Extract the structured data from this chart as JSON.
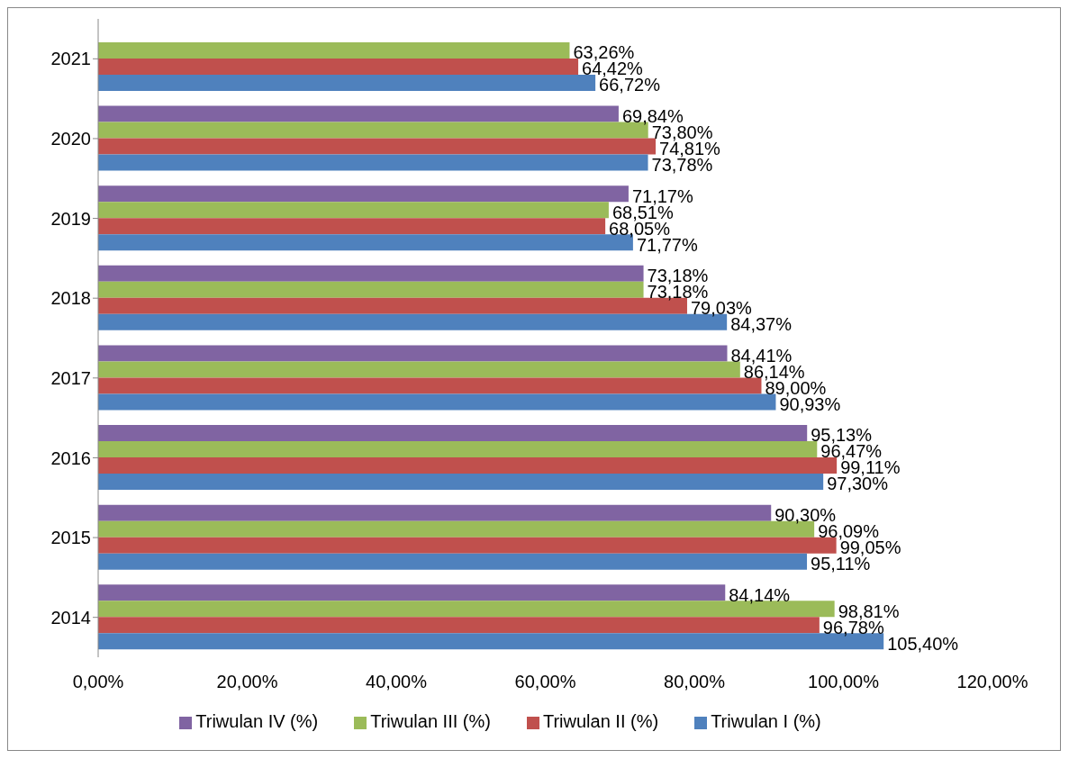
{
  "chart_data": {
    "type": "bar",
    "orientation": "horizontal",
    "categories": [
      "2021",
      "2020",
      "2019",
      "2018",
      "2017",
      "2016",
      "2015",
      "2014"
    ],
    "series": [
      {
        "name": "Triwulan IV (%)",
        "color": "#8064a2",
        "values": [
          null,
          69.84,
          71.17,
          73.18,
          84.41,
          95.13,
          90.3,
          84.14
        ],
        "value_labels": [
          null,
          "69,84%",
          "71,17%",
          "73,18%",
          "84,41%",
          "95,13%",
          "90,30%",
          "84,14%"
        ]
      },
      {
        "name": "Triwulan III (%)",
        "color": "#9bbb59",
        "values": [
          63.26,
          73.8,
          68.51,
          73.18,
          86.14,
          96.47,
          96.09,
          98.81
        ],
        "value_labels": [
          "63,26%",
          "73,80%",
          "68,51%",
          "73,18%",
          "86,14%",
          "96,47%",
          "96,09%",
          "98,81%"
        ]
      },
      {
        "name": "Triwulan II (%)",
        "color": "#c0504d",
        "values": [
          64.42,
          74.81,
          68.05,
          79.03,
          89.0,
          99.11,
          99.05,
          96.78
        ],
        "value_labels": [
          "64,42%",
          "74,81%",
          "68,05%",
          "79,03%",
          "89,00%",
          "99,11%",
          "99,05%",
          "96,78%"
        ]
      },
      {
        "name": "Triwulan I (%)",
        "color": "#4f81bd",
        "values": [
          66.72,
          73.78,
          71.77,
          84.37,
          90.93,
          97.3,
          95.11,
          105.4
        ],
        "value_labels": [
          "66,72%",
          "73,78%",
          "71,77%",
          "84,37%",
          "90,93%",
          "97,30%",
          "95,11%",
          "105,40%"
        ]
      }
    ],
    "xlim": [
      0,
      120
    ],
    "xticks": [
      {
        "value": 0,
        "label": "0,00%"
      },
      {
        "value": 20,
        "label": "20,00%"
      },
      {
        "value": 40,
        "label": "40,00%"
      },
      {
        "value": 60,
        "label": "60,00%"
      },
      {
        "value": 80,
        "label": "80,00%"
      },
      {
        "value": 100,
        "label": "100,00%"
      },
      {
        "value": 120,
        "label": "120,00%"
      }
    ],
    "grid": false,
    "legend": "bottom"
  }
}
